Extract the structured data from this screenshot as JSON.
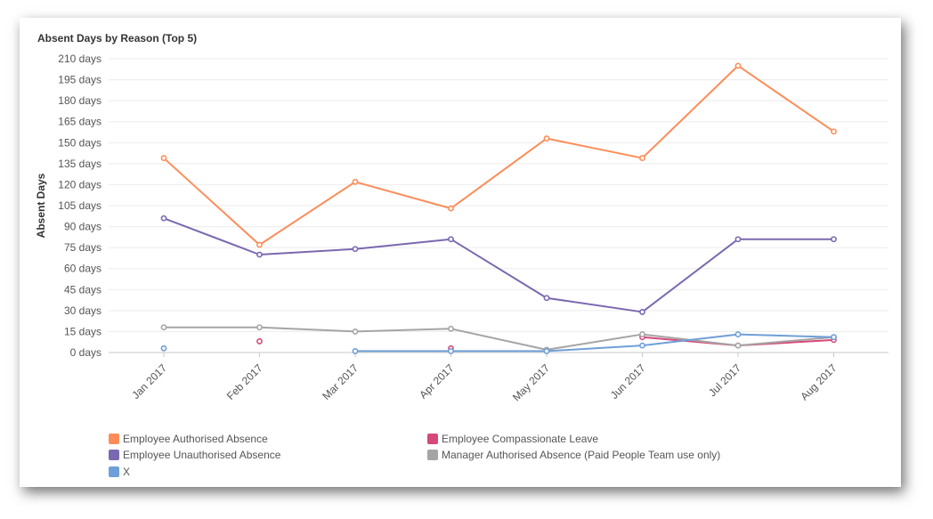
{
  "chart_data": {
    "type": "line",
    "title": "Absent Days by Reason (Top 5)",
    "ylabel": "Absent Days",
    "xlabel": "",
    "ylim": [
      0,
      210
    ],
    "ytick_step": 15,
    "ytick_suffix": " days",
    "grid": true,
    "legend_position": "bottom",
    "categories": [
      "Jan 2017",
      "Feb 2017",
      "Mar 2017",
      "Apr 2017",
      "May 2017",
      "Jun 2017",
      "Jul 2017",
      "Aug 2017"
    ],
    "series": [
      {
        "name": "Employee Authorised Absence",
        "color": "#fc8d59",
        "values": [
          139,
          77,
          122,
          103,
          153,
          139,
          205,
          158
        ]
      },
      {
        "name": "Employee Compassionate Leave",
        "color": "#d6497a",
        "values": [
          null,
          8,
          null,
          3,
          null,
          11,
          5,
          9
        ]
      },
      {
        "name": "Employee Unauthorised Absence",
        "color": "#7b68b0",
        "values": [
          96,
          70,
          74,
          81,
          39,
          29,
          81,
          81
        ]
      },
      {
        "name": "Manager Authorised Absence (Paid  People Team use only)",
        "color": "#a5a5a5",
        "values": [
          18,
          18,
          15,
          17,
          2,
          13,
          5,
          11
        ]
      },
      {
        "name": "X",
        "color": "#6f9fd8",
        "values": [
          3,
          null,
          1,
          1,
          1,
          5,
          13,
          11
        ]
      }
    ]
  }
}
